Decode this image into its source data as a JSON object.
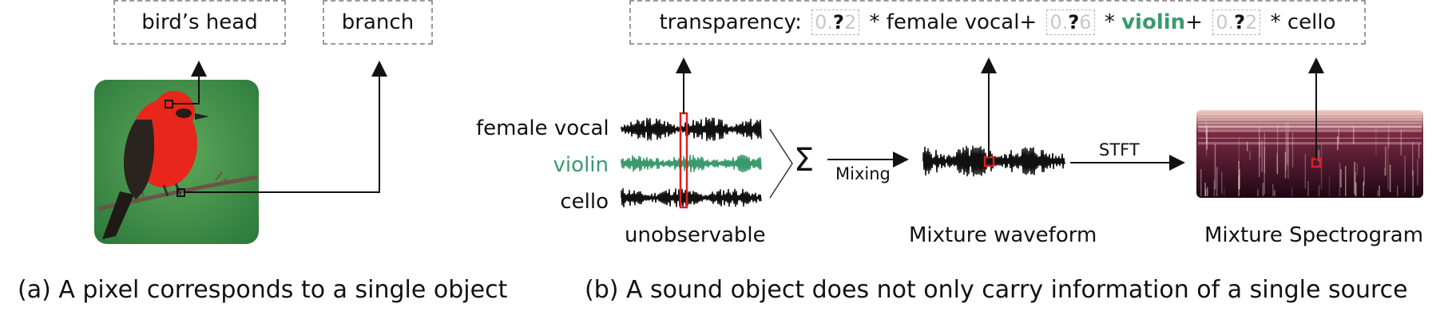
{
  "panel_a": {
    "label_head": "bird’s head",
    "label_branch": "branch",
    "caption": "(a) A pixel corresponds to a single object"
  },
  "panel_b": {
    "formula": {
      "prefix": "transparency: ",
      "c1_dim_a": "0.",
      "c1_q": "?",
      "c1_dim_b": "2",
      "t1": " * female vocal+ ",
      "c2_dim_a": "0.",
      "c2_q": "?",
      "c2_dim_b": "6",
      "t2": " * ",
      "violin": "violin",
      "t3": "+ ",
      "c3_dim_a": "0.",
      "c3_q": "?",
      "c3_dim_b": "2",
      "t4": " * cello"
    },
    "sources": {
      "vocal": "female vocal",
      "violin": "violin",
      "cello": "cello"
    },
    "sum_symbol": "Σ",
    "mixing": "Mixing",
    "stft": "STFT",
    "unobservable": "unobservable",
    "mixture_waveform": "Mixture waveform",
    "mixture_spectrogram": "Mixture Spectrogram",
    "caption": "(b) A sound object does not only carry information of a single source"
  },
  "colors": {
    "violin_green": "#3a9a6e",
    "highlight_red": "#e02020",
    "bird_red": "#e8261b",
    "bg_green": "#3f8f4a",
    "spectrogram_dark": "#2a0c1c"
  }
}
